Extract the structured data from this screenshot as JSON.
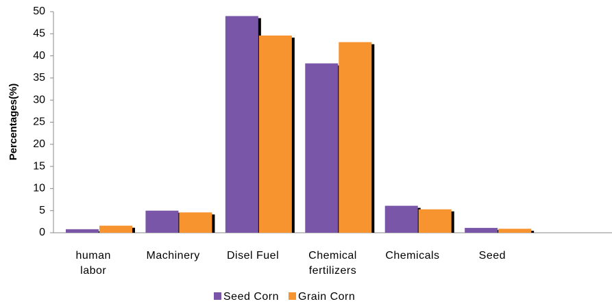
{
  "chart_data": {
    "type": "bar",
    "y_label": "Percentages(%)",
    "categories": [
      "human labor",
      "Machinery",
      "Disel Fuel",
      "Chemical fertilizers",
      "Chemicals",
      "Seed",
      null
    ],
    "series": [
      {
        "name": "Seed Corn",
        "color": "#7a56a8",
        "values": [
          0.8,
          5,
          49,
          38.3,
          6.1,
          1.1,
          null
        ]
      },
      {
        "name": "Grain Corn",
        "color": "#f7942f",
        "values": [
          1.6,
          4.6,
          44.6,
          43.1,
          5.3,
          0.9,
          null
        ]
      }
    ],
    "ylim": [
      0,
      50
    ],
    "yticks": [
      0,
      5,
      10,
      15,
      20,
      25,
      30,
      35,
      40,
      45,
      50
    ],
    "grid": false,
    "legend": "bottom"
  }
}
